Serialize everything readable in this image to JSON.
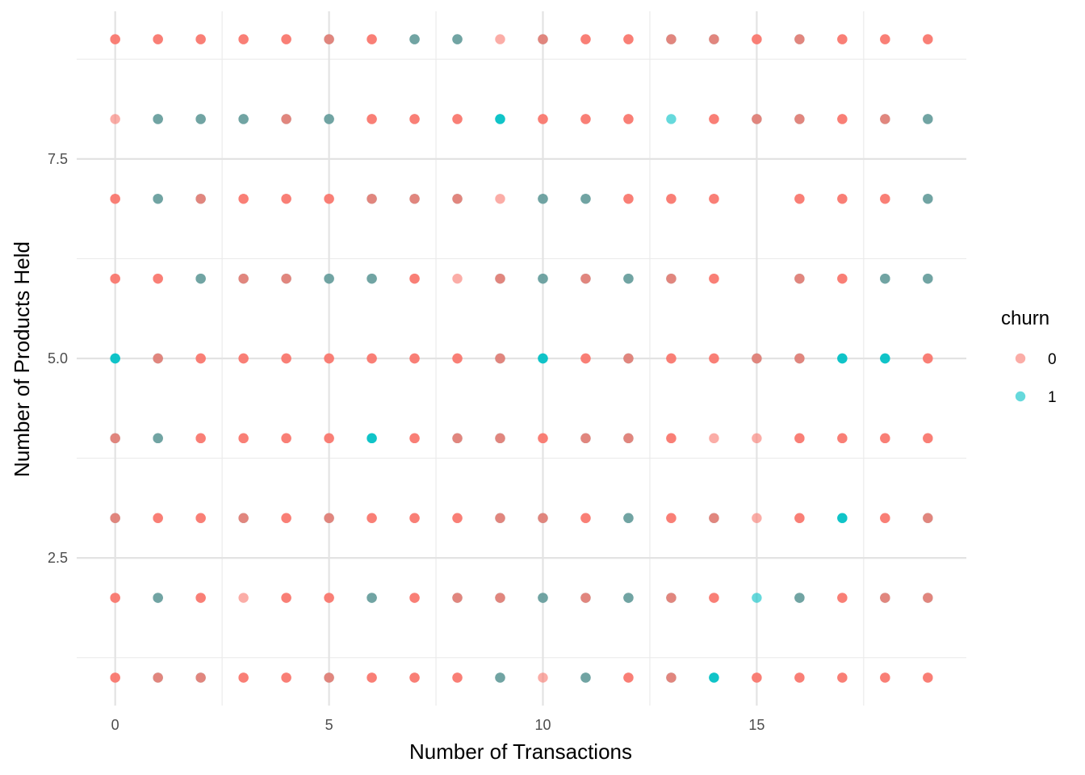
{
  "chart_data": {
    "type": "scatter",
    "title": "",
    "xlabel": "Number of Transactions",
    "ylabel": "Number of Products Held",
    "xlim": [
      -0.9,
      19.9
    ],
    "ylim": [
      0.65,
      9.35
    ],
    "x_ticks": [
      0,
      5,
      10,
      15
    ],
    "x_tick_labels": [
      "0",
      "5",
      "10",
      "15"
    ],
    "y_ticks": [
      2.5,
      5.0,
      7.5
    ],
    "y_tick_labels": [
      "2.5",
      "5.0",
      "7.5"
    ],
    "x_minor_ticks": [
      2.5,
      7.5,
      12.5,
      17.5
    ],
    "y_minor_ticks": [
      1.25,
      3.75,
      6.25,
      8.75
    ],
    "grid": true,
    "legend_placement": "right",
    "legend_title": "churn",
    "series": [
      {
        "name": "0",
        "color": "#F8766D"
      },
      {
        "name": "1",
        "color": "#00BFC4"
      }
    ],
    "point_opacity": 0.6,
    "rows": {
      "9": "00000200R2000220000",
      "8": "R2222R0RRRR000R0RR2",
      "7": "B2RRRRRRRR1100R0RRR2",
      "6": "002R020R0R2R2R0BR022",
      "5": "1BRRRRRRRRBRRRRBRRRR",
      "4": "B2RRRRR11RRRRRRRR0RR",
      "3": "B0RBRRRRRRBRRRRRRR0R",
      "2": "R2RRRRRRRRRRRRRRRRRR",
      "1": "0BRRRRRRRRRRRRRRRRRR"
    },
    "points": {
      "y9": [
        [
          0,
          0
        ],
        [
          1,
          0
        ],
        [
          2,
          0
        ],
        [
          3,
          0
        ],
        [
          4,
          0
        ],
        [
          5,
          "m"
        ],
        [
          6,
          0
        ],
        [
          7,
          "d"
        ],
        [
          8,
          "d"
        ],
        [
          9,
          "l"
        ],
        [
          10,
          "m"
        ],
        [
          11,
          0
        ],
        [
          12,
          0
        ],
        [
          13,
          "m"
        ],
        [
          14,
          "m"
        ],
        [
          15,
          0
        ],
        [
          16,
          "m"
        ],
        [
          17,
          0
        ],
        [
          18,
          0
        ],
        [
          19,
          0
        ]
      ],
      "y8": [
        [
          0,
          "l"
        ],
        [
          1,
          "d"
        ],
        [
          2,
          "d"
        ],
        [
          3,
          "d"
        ],
        [
          4,
          "m"
        ],
        [
          5,
          "d"
        ],
        [
          6,
          0
        ],
        [
          7,
          0
        ],
        [
          8,
          0
        ],
        [
          9,
          1
        ],
        [
          10,
          0
        ],
        [
          11,
          0
        ],
        [
          12,
          0
        ],
        [
          13,
          "l1"
        ],
        [
          14,
          0
        ],
        [
          15,
          "m"
        ],
        [
          16,
          "m"
        ],
        [
          17,
          0
        ],
        [
          18,
          "m"
        ],
        [
          19,
          "d"
        ]
      ],
      "y7": [
        [
          0,
          0
        ],
        [
          1,
          "d"
        ],
        [
          2,
          "m"
        ],
        [
          3,
          0
        ],
        [
          4,
          0
        ],
        [
          5,
          0
        ],
        [
          6,
          "m"
        ],
        [
          7,
          "m"
        ],
        [
          8,
          "m"
        ],
        [
          9,
          "l"
        ],
        [
          10,
          "d"
        ],
        [
          11,
          "d"
        ],
        [
          12,
          0
        ],
        [
          13,
          0
        ],
        [
          14,
          0
        ],
        [
          16,
          0
        ],
        [
          17,
          0
        ],
        [
          18,
          0
        ],
        [
          19,
          "d"
        ]
      ],
      "y6": [
        [
          0,
          0
        ],
        [
          1,
          0
        ],
        [
          2,
          "d"
        ],
        [
          3,
          "m"
        ],
        [
          4,
          "m"
        ],
        [
          5,
          "d"
        ],
        [
          6,
          "d"
        ],
        [
          7,
          0
        ],
        [
          8,
          "l"
        ],
        [
          9,
          "m"
        ],
        [
          10,
          "d"
        ],
        [
          11,
          "m"
        ],
        [
          12,
          "d"
        ],
        [
          13,
          "m"
        ],
        [
          14,
          0
        ],
        [
          16,
          "m"
        ],
        [
          17,
          0
        ],
        [
          18,
          "d"
        ],
        [
          19,
          "d"
        ]
      ],
      "y5": [
        [
          0,
          1
        ],
        [
          1,
          "m"
        ],
        [
          2,
          0
        ],
        [
          3,
          0
        ],
        [
          4,
          0
        ],
        [
          5,
          0
        ],
        [
          6,
          0
        ],
        [
          7,
          0
        ],
        [
          8,
          0
        ],
        [
          9,
          "m"
        ],
        [
          10,
          1
        ],
        [
          11,
          0
        ],
        [
          12,
          "m"
        ],
        [
          13,
          0
        ],
        [
          14,
          0
        ],
        [
          15,
          "m"
        ],
        [
          16,
          "m"
        ],
        [
          17,
          1
        ],
        [
          18,
          1
        ],
        [
          19,
          0
        ]
      ],
      "y4": [
        [
          0,
          "m"
        ],
        [
          1,
          "d"
        ],
        [
          2,
          0
        ],
        [
          3,
          0
        ],
        [
          4,
          0
        ],
        [
          5,
          0
        ],
        [
          6,
          1
        ],
        [
          7,
          0
        ],
        [
          8,
          "m"
        ],
        [
          9,
          "m"
        ],
        [
          10,
          0
        ],
        [
          11,
          "m"
        ],
        [
          12,
          "m"
        ],
        [
          13,
          0
        ],
        [
          14,
          "l"
        ],
        [
          15,
          "l"
        ],
        [
          16,
          0
        ],
        [
          17,
          0
        ],
        [
          18,
          0
        ],
        [
          19,
          0
        ]
      ],
      "y3": [
        [
          0,
          "m"
        ],
        [
          1,
          0
        ],
        [
          2,
          0
        ],
        [
          3,
          "m"
        ],
        [
          4,
          0
        ],
        [
          5,
          "m"
        ],
        [
          6,
          0
        ],
        [
          7,
          0
        ],
        [
          8,
          0
        ],
        [
          9,
          "m"
        ],
        [
          10,
          "m"
        ],
        [
          11,
          0
        ],
        [
          12,
          "d"
        ],
        [
          13,
          0
        ],
        [
          14,
          "m"
        ],
        [
          15,
          "l"
        ],
        [
          16,
          0
        ],
        [
          17,
          1
        ],
        [
          18,
          0
        ],
        [
          19,
          "m"
        ]
      ],
      "y2": [
        [
          0,
          0
        ],
        [
          1,
          "d"
        ],
        [
          2,
          0
        ],
        [
          3,
          "l"
        ],
        [
          4,
          0
        ],
        [
          5,
          0
        ],
        [
          6,
          "d"
        ],
        [
          7,
          0
        ],
        [
          8,
          "m"
        ],
        [
          9,
          "m"
        ],
        [
          10,
          "d"
        ],
        [
          11,
          "m"
        ],
        [
          12,
          "d"
        ],
        [
          13,
          "m"
        ],
        [
          14,
          0
        ],
        [
          15,
          "l1"
        ],
        [
          16,
          "d"
        ],
        [
          17,
          0
        ],
        [
          18,
          "m"
        ],
        [
          19,
          "m"
        ]
      ],
      "y1": [
        [
          0,
          0
        ],
        [
          1,
          "m"
        ],
        [
          2,
          "m"
        ],
        [
          3,
          0
        ],
        [
          4,
          0
        ],
        [
          5,
          "m"
        ],
        [
          6,
          0
        ],
        [
          7,
          0
        ],
        [
          8,
          0
        ],
        [
          9,
          "d"
        ],
        [
          10,
          "l"
        ],
        [
          11,
          "d"
        ],
        [
          12,
          0
        ],
        [
          13,
          "m"
        ],
        [
          14,
          1
        ],
        [
          15,
          0
        ],
        [
          16,
          0
        ],
        [
          17,
          0
        ],
        [
          18,
          0
        ],
        [
          19,
          0
        ]
      ]
    },
    "legend_entries": [
      "0",
      "1"
    ]
  }
}
